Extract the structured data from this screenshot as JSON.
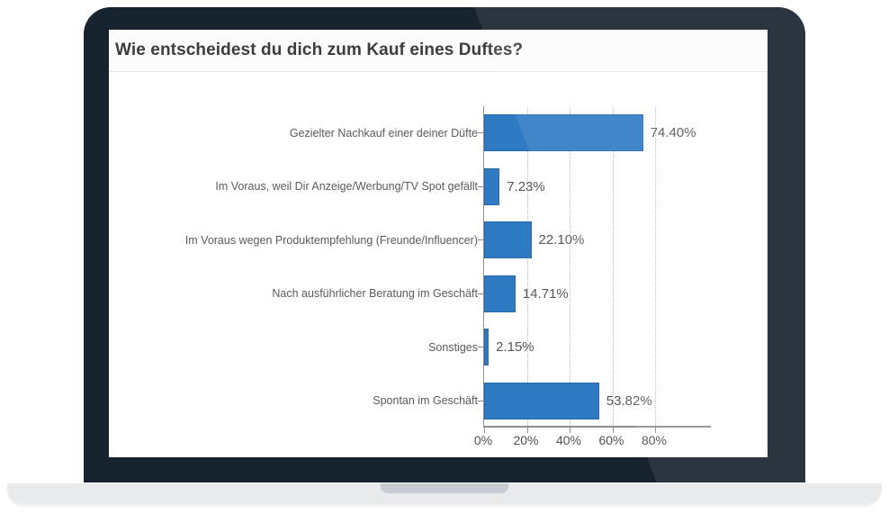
{
  "laptop": {
    "bezel_color": "#17232f",
    "bezel_highlight": "rgba(255,255,255,0.085)",
    "base_color": "#e8eaec",
    "notch_color": "#c7cdd3",
    "screen_color": "#ffffff"
  },
  "chart_data": {
    "type": "bar",
    "orientation": "horizontal",
    "title": "Wie entscheidest du dich zum Kauf eines Duftes?",
    "categories": [
      "Gezielter Nachkauf einer deiner Düfte",
      "Im Voraus, weil Dir Anzeige/Werbung/TV Spot gefällt",
      "Im Voraus wegen Produktempfehlung (Freunde/Influencer)",
      "Nach ausführlicher Beratung im Geschäft",
      "Sonstiges",
      "Spontan im Geschäft"
    ],
    "values": [
      74.4,
      7.23,
      22.1,
      14.71,
      2.15,
      53.82
    ],
    "value_labels": [
      "74.40%",
      "7.23%",
      "22.10%",
      "14.71%",
      "2.15%",
      "53.82%"
    ],
    "x_ticks": [
      0,
      20,
      40,
      60,
      80
    ],
    "x_tick_labels": [
      "0%",
      "20%",
      "40%",
      "60%",
      "80%"
    ],
    "xlim": [
      0,
      106
    ],
    "xlabel": "",
    "ylabel": "",
    "grid": "dotted-vertical",
    "legend": "none",
    "bar_color": "#2e7bc3"
  }
}
